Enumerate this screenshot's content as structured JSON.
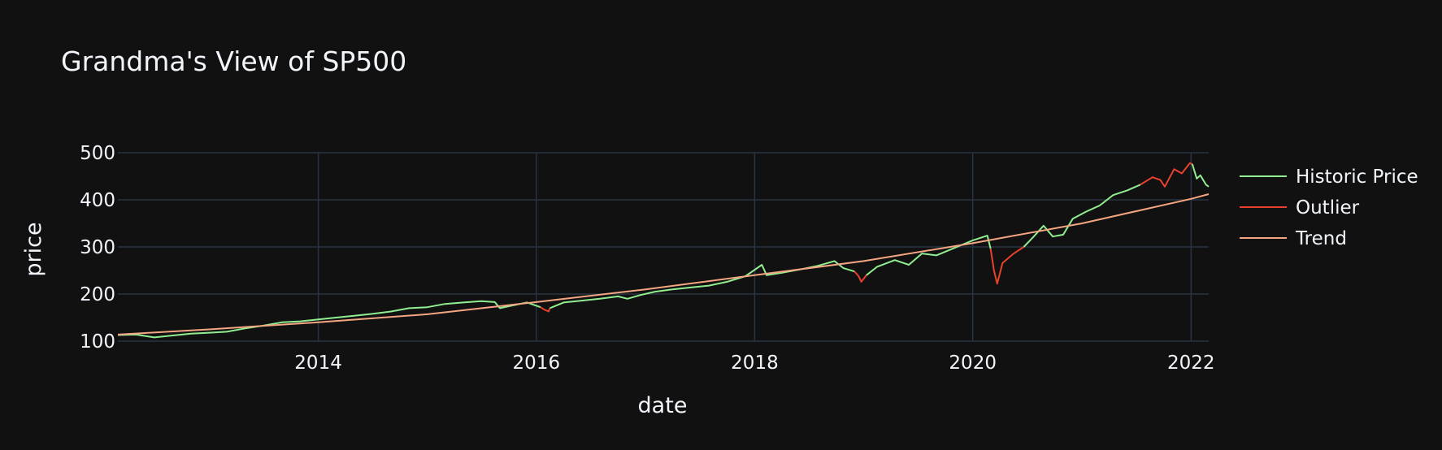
{
  "chart_data": {
    "type": "line",
    "title": "Grandma's View of SP500",
    "xlabel": "date",
    "ylabel": "price",
    "xlim": [
      "2012-03-01",
      "2022-03-01"
    ],
    "ylim": [
      100,
      500
    ],
    "x_ticks": [
      "2014",
      "2016",
      "2018",
      "2020",
      "2022"
    ],
    "y_ticks": [
      "100",
      "200",
      "300",
      "400",
      "500"
    ],
    "grid": true,
    "legend_position": "top-right",
    "series": [
      {
        "name": "Historic Price",
        "color": "#90ee90",
        "points": [
          [
            "2012-03-01",
            113
          ],
          [
            "2012-05-01",
            114
          ],
          [
            "2012-07-01",
            108
          ],
          [
            "2012-09-01",
            112
          ],
          [
            "2012-11-01",
            116
          ],
          [
            "2013-01-01",
            118
          ],
          [
            "2013-03-01",
            120
          ],
          [
            "2013-05-01",
            127
          ],
          [
            "2013-07-01",
            133
          ],
          [
            "2013-09-01",
            140
          ],
          [
            "2013-11-01",
            142
          ],
          [
            "2014-01-01",
            146
          ],
          [
            "2014-03-01",
            150
          ],
          [
            "2014-05-01",
            154
          ],
          [
            "2014-07-01",
            158
          ],
          [
            "2014-09-01",
            163
          ],
          [
            "2014-11-01",
            170
          ],
          [
            "2015-01-01",
            172
          ],
          [
            "2015-03-01",
            179
          ],
          [
            "2015-05-01",
            182
          ],
          [
            "2015-07-01",
            185
          ],
          [
            "2015-08-15",
            183
          ],
          [
            "2015-09-01",
            170
          ],
          [
            "2015-10-15",
            176
          ],
          [
            "2015-12-01",
            182
          ],
          [
            "2016-01-15",
            172
          ]
        ]
      },
      {
        "name": "Historic Price",
        "color": "#90ee90",
        "points": [
          [
            "2016-02-15",
            170
          ],
          [
            "2016-04-01",
            182
          ],
          [
            "2016-06-01",
            186
          ],
          [
            "2016-08-01",
            190
          ],
          [
            "2016-10-01",
            195
          ],
          [
            "2016-11-01",
            190
          ],
          [
            "2016-12-15",
            198
          ],
          [
            "2017-02-01",
            205
          ],
          [
            "2017-04-01",
            210
          ],
          [
            "2017-06-01",
            214
          ],
          [
            "2017-08-01",
            218
          ],
          [
            "2017-10-01",
            226
          ],
          [
            "2017-12-01",
            238
          ],
          [
            "2018-01-25",
            262
          ],
          [
            "2018-02-10",
            240
          ],
          [
            "2018-04-01",
            245
          ],
          [
            "2018-06-01",
            252
          ],
          [
            "2018-08-01",
            260
          ],
          [
            "2018-09-25",
            270
          ],
          [
            "2018-10-25",
            255
          ],
          [
            "2018-12-01",
            248
          ]
        ]
      },
      {
        "name": "Outlier",
        "color": "#e8422f",
        "points": [
          [
            "2016-01-15",
            172
          ],
          [
            "2016-01-25",
            168
          ],
          [
            "2016-02-11",
            163
          ],
          [
            "2016-02-15",
            170
          ]
        ]
      },
      {
        "name": "Outlier",
        "color": "#e8422f",
        "points": [
          [
            "2018-12-01",
            248
          ],
          [
            "2018-12-15",
            238
          ],
          [
            "2018-12-24",
            226
          ],
          [
            "2019-01-10",
            240
          ]
        ]
      },
      {
        "name": "Historic Price",
        "color": "#90ee90",
        "points": [
          [
            "2019-01-10",
            240
          ],
          [
            "2019-02-15",
            258
          ],
          [
            "2019-04-15",
            272
          ],
          [
            "2019-06-01",
            262
          ],
          [
            "2019-07-15",
            286
          ],
          [
            "2019-09-01",
            282
          ],
          [
            "2019-11-01",
            298
          ],
          [
            "2020-01-01",
            314
          ],
          [
            "2020-02-19",
            324
          ],
          [
            "2020-03-01",
            296
          ]
        ]
      },
      {
        "name": "Outlier",
        "color": "#e8422f",
        "points": [
          [
            "2020-03-01",
            296
          ],
          [
            "2020-03-12",
            250
          ],
          [
            "2020-03-23",
            222
          ],
          [
            "2020-04-10",
            266
          ],
          [
            "2020-05-15",
            285
          ],
          [
            "2020-06-20",
            300
          ]
        ]
      },
      {
        "name": "Historic Price",
        "color": "#90ee90",
        "points": [
          [
            "2020-06-20",
            300
          ],
          [
            "2020-07-20",
            320
          ],
          [
            "2020-08-25",
            345
          ],
          [
            "2020-09-25",
            322
          ],
          [
            "2020-10-30",
            326
          ],
          [
            "2020-12-01",
            360
          ],
          [
            "2021-01-15",
            375
          ],
          [
            "2021-03-01",
            388
          ],
          [
            "2021-04-15",
            410
          ],
          [
            "2021-06-01",
            420
          ],
          [
            "2021-07-15",
            432
          ]
        ]
      },
      {
        "name": "Outlier",
        "color": "#e8422f",
        "points": [
          [
            "2021-07-15",
            432
          ],
          [
            "2021-08-25",
            448
          ],
          [
            "2021-09-20",
            442
          ],
          [
            "2021-10-05",
            428
          ],
          [
            "2021-11-05",
            465
          ],
          [
            "2021-12-01",
            456
          ],
          [
            "2021-12-28",
            478
          ],
          [
            "2022-01-05",
            476
          ]
        ]
      },
      {
        "name": "Historic Price",
        "color": "#90ee90",
        "points": [
          [
            "2022-01-05",
            476
          ],
          [
            "2022-01-20",
            445
          ],
          [
            "2022-02-01",
            452
          ],
          [
            "2022-02-20",
            432
          ],
          [
            "2022-03-01",
            428
          ]
        ]
      },
      {
        "name": "Trend",
        "color": "#f4a582",
        "points": [
          [
            "2012-03-01",
            114
          ],
          [
            "2013-01-01",
            125
          ],
          [
            "2014-01-01",
            140
          ],
          [
            "2015-01-01",
            157
          ],
          [
            "2016-01-01",
            183
          ],
          [
            "2017-01-01",
            210
          ],
          [
            "2018-01-01",
            240
          ],
          [
            "2019-01-01",
            270
          ],
          [
            "2020-01-01",
            308
          ],
          [
            "2021-01-01",
            350
          ],
          [
            "2022-01-01",
            402
          ],
          [
            "2022-03-01",
            412
          ]
        ]
      }
    ],
    "legend": [
      {
        "name": "Historic Price",
        "color": "#90ee90"
      },
      {
        "name": "Outlier",
        "color": "#e8422f"
      },
      {
        "name": "Trend",
        "color": "#f4a582"
      }
    ]
  }
}
